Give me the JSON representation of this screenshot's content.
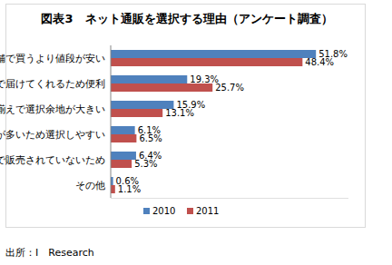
{
  "chart_data": {
    "type": "bar",
    "title": "図表3　ネット通販を選択する理由（アンケート調査）",
    "source": "出所：I　Research",
    "orientation": "horizontal",
    "categories": [
      "実店舗で買うより値段が安い",
      "家まで届けてくれるため便利",
      "品揃えで選択余地が大きい",
      "紹介情報が多いため選択しやすい",
      "実店舗で販売されていないため",
      "その他"
    ],
    "series": [
      {
        "name": "2010",
        "color": "#4f81bd",
        "values": [
          51.8,
          19.3,
          15.9,
          6.1,
          6.4,
          0.6
        ],
        "value_labels": [
          "51.8%",
          "19.3%",
          "15.9%",
          "6.1%",
          "6.4%",
          "0.6%"
        ]
      },
      {
        "name": "2011",
        "color": "#c0504d",
        "values": [
          48.4,
          25.7,
          13.1,
          6.5,
          5.3,
          1.1
        ],
        "value_labels": [
          "48.4%",
          "25.7%",
          "13.1%",
          "6.5%",
          "5.3%",
          "1.1%"
        ]
      }
    ],
    "xlim": [
      0,
      60
    ],
    "data_labels": true,
    "tick_labels": "y",
    "grid": false,
    "legend": "bottom"
  }
}
